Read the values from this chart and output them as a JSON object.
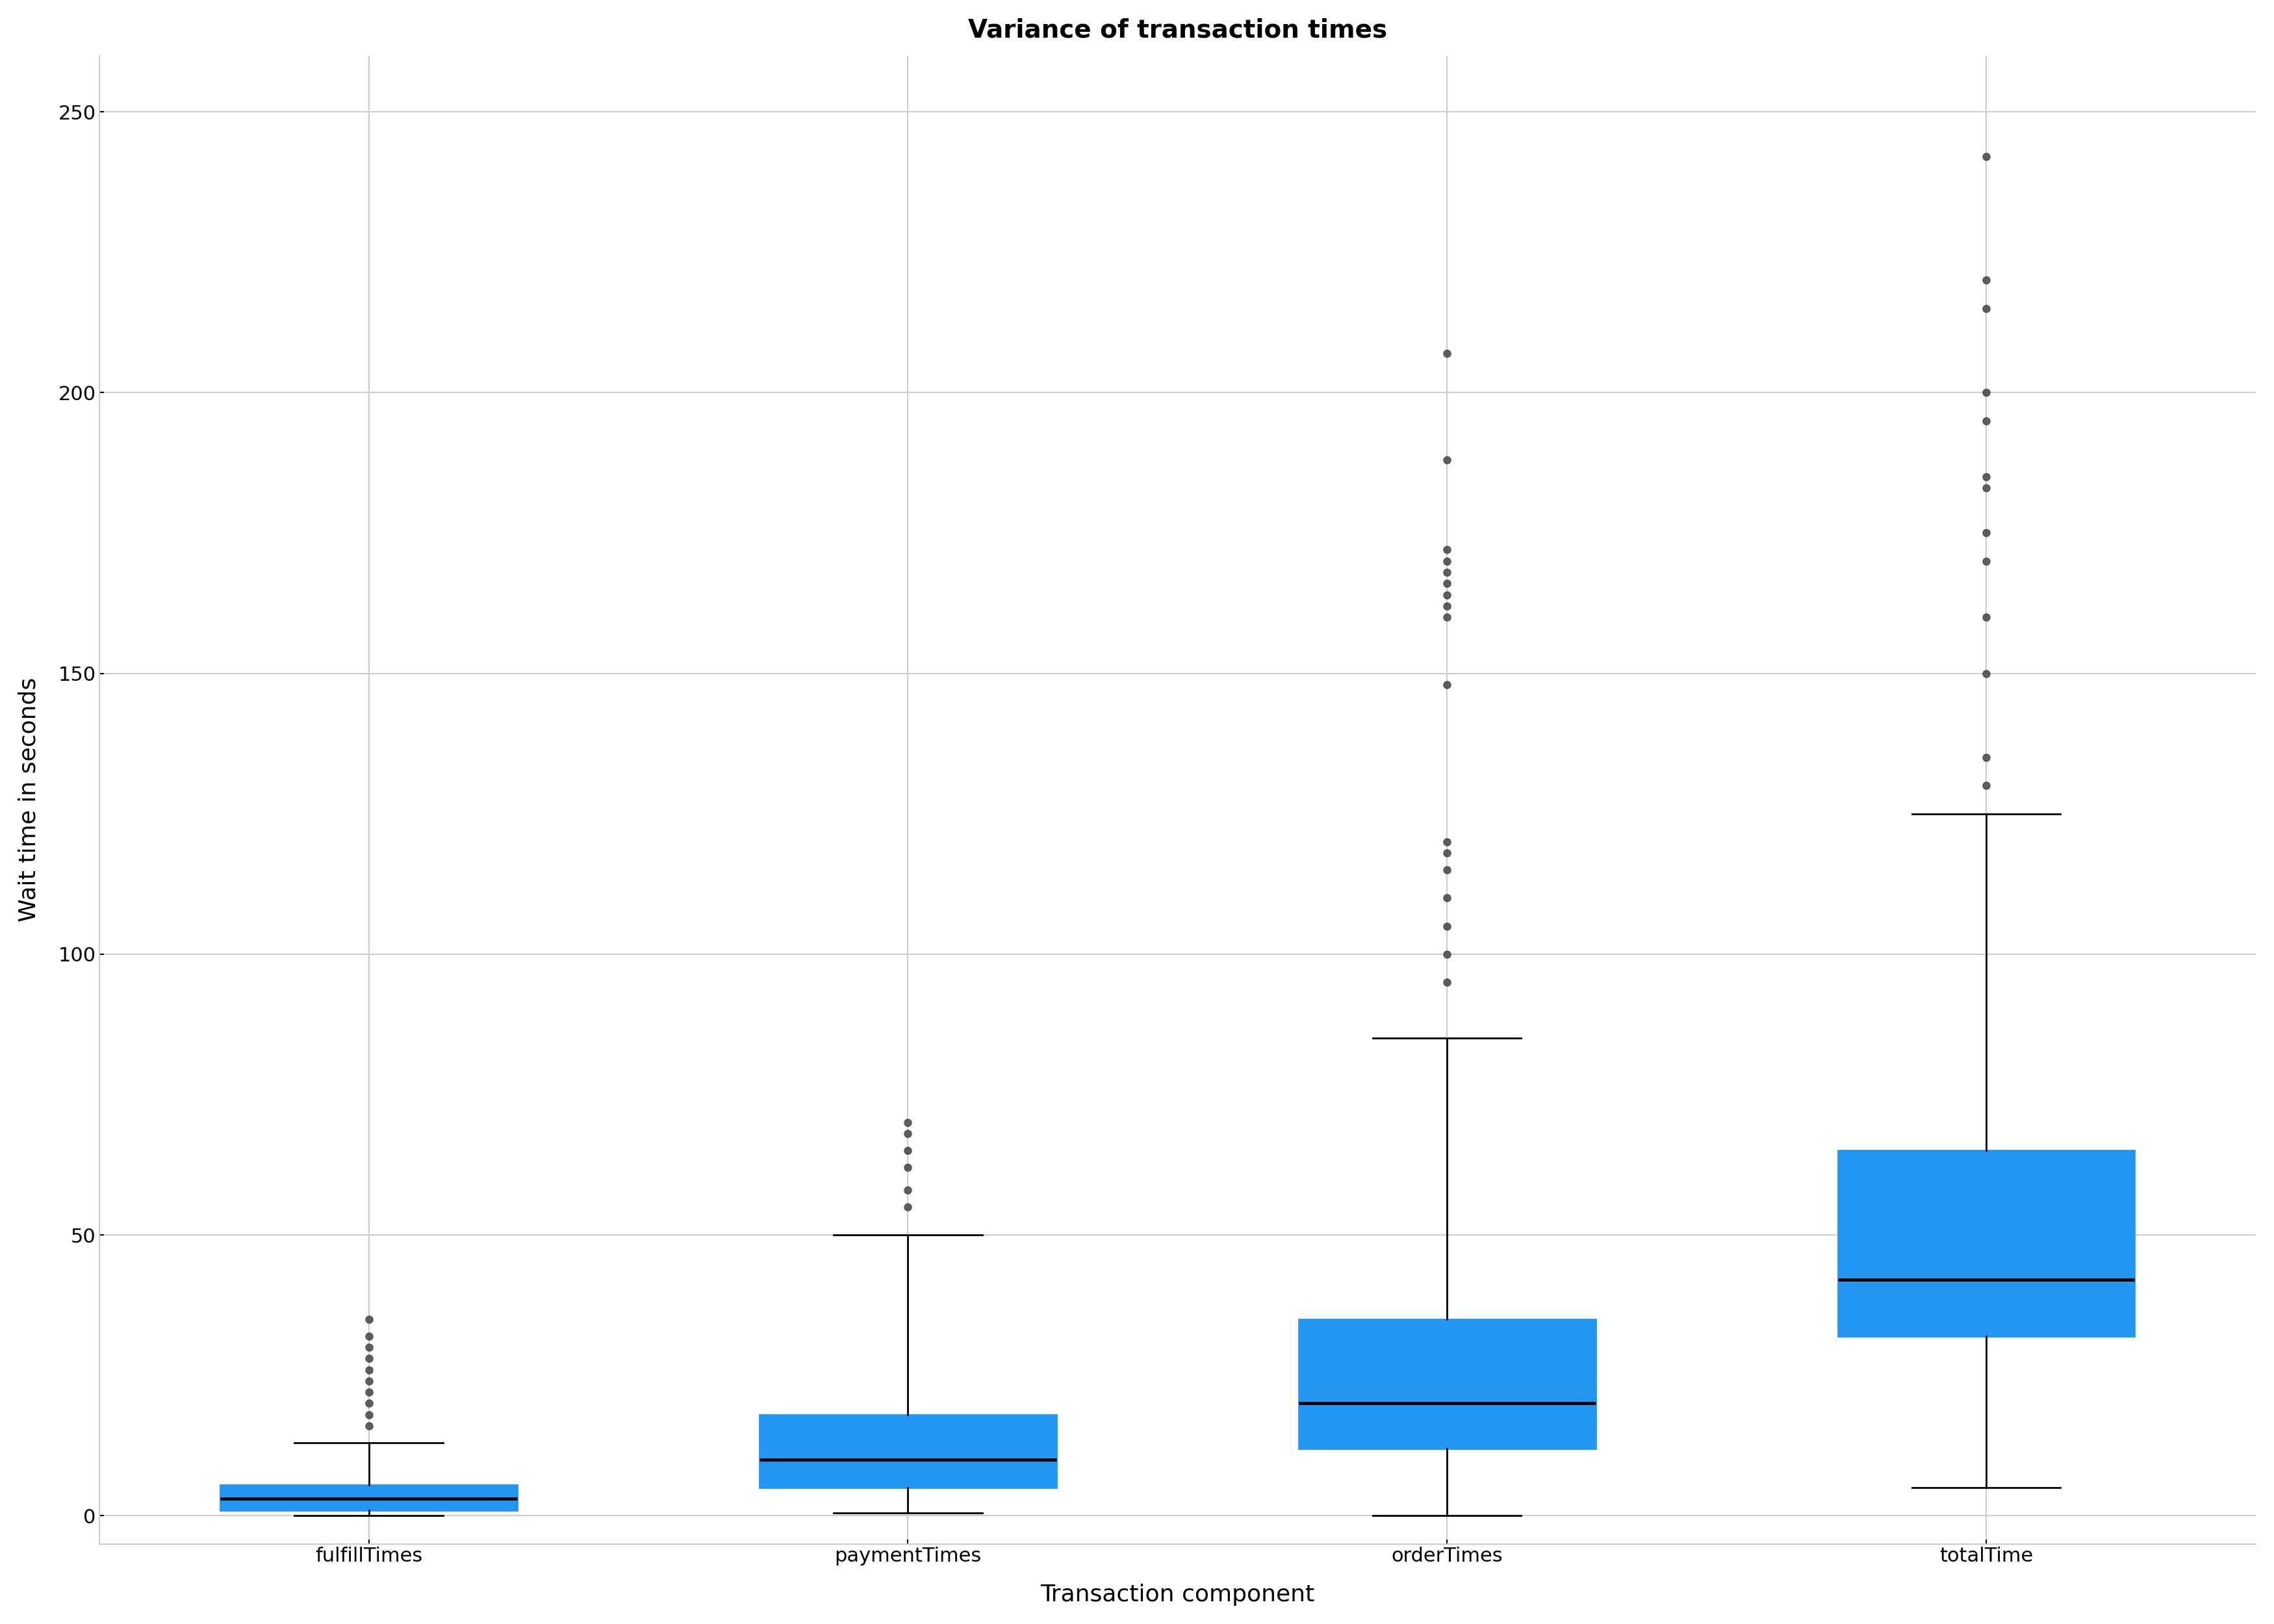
{
  "title": "Variance of transaction times",
  "xlabel": "Transaction component",
  "ylabel": "Wait time in seconds",
  "categories": [
    "fulfillTimes",
    "paymentTimes",
    "orderTimes",
    "totalTime"
  ],
  "box_color": "#2196F3",
  "median_color": "#000000",
  "whisker_color": "#000000",
  "outlier_color": "#444444",
  "background_color": "#ffffff",
  "grid_color": "#cccccc",
  "ylim": [
    -5,
    260
  ],
  "yticks": [
    0,
    50,
    100,
    150,
    200,
    250
  ],
  "title_fontsize": 28,
  "label_fontsize": 26,
  "tick_fontsize": 22,
  "box_stats": {
    "fulfillTimes": {
      "whislo": 0,
      "q1": 1.0,
      "med": 3.0,
      "q3": 5.5,
      "whishi": 13,
      "fliers": [
        16,
        18,
        20,
        22,
        24,
        26,
        28,
        30,
        32,
        35
      ]
    },
    "paymentTimes": {
      "whislo": 0.5,
      "q1": 5.0,
      "med": 10.0,
      "q3": 18.0,
      "whishi": 50,
      "fliers": [
        55,
        58,
        62,
        65,
        68,
        70
      ]
    },
    "orderTimes": {
      "whislo": 0,
      "q1": 12.0,
      "med": 20.0,
      "q3": 35.0,
      "whishi": 85,
      "fliers": [
        95,
        100,
        105,
        110,
        115,
        118,
        120,
        148,
        160,
        162,
        164,
        166,
        168,
        170,
        172,
        188,
        207
      ]
    },
    "totalTime": {
      "whislo": 5,
      "q1": 32.0,
      "med": 42.0,
      "q3": 65.0,
      "whishi": 125,
      "fliers": [
        130,
        135,
        150,
        160,
        170,
        175,
        183,
        185,
        195,
        200,
        215,
        220,
        242
      ]
    }
  }
}
